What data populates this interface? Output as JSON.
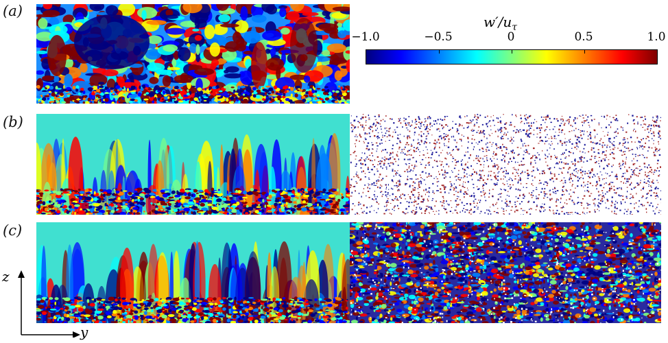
{
  "panel_labels": {
    "a": "(a)",
    "b": "(b)",
    "c": "(c)"
  },
  "colorbar": {
    "title_main": "w′/u",
    "title_sub": "τ",
    "ticks": [
      "−1.0",
      "−0.5",
      "0",
      "0.5",
      "1.0"
    ],
    "tick_values": [
      -1.0,
      -0.5,
      0,
      0.5,
      1.0
    ],
    "range": [
      -1.0,
      1.0
    ],
    "colormap": "jet"
  },
  "axes": {
    "vertical": "z",
    "horizontal": "y"
  },
  "colors": {
    "jet": [
      "#00007f",
      "#0000ff",
      "#007fff",
      "#00ffff",
      "#7fff7f",
      "#ffff00",
      "#ff7f00",
      "#ff0000",
      "#7f0000"
    ]
  }
}
